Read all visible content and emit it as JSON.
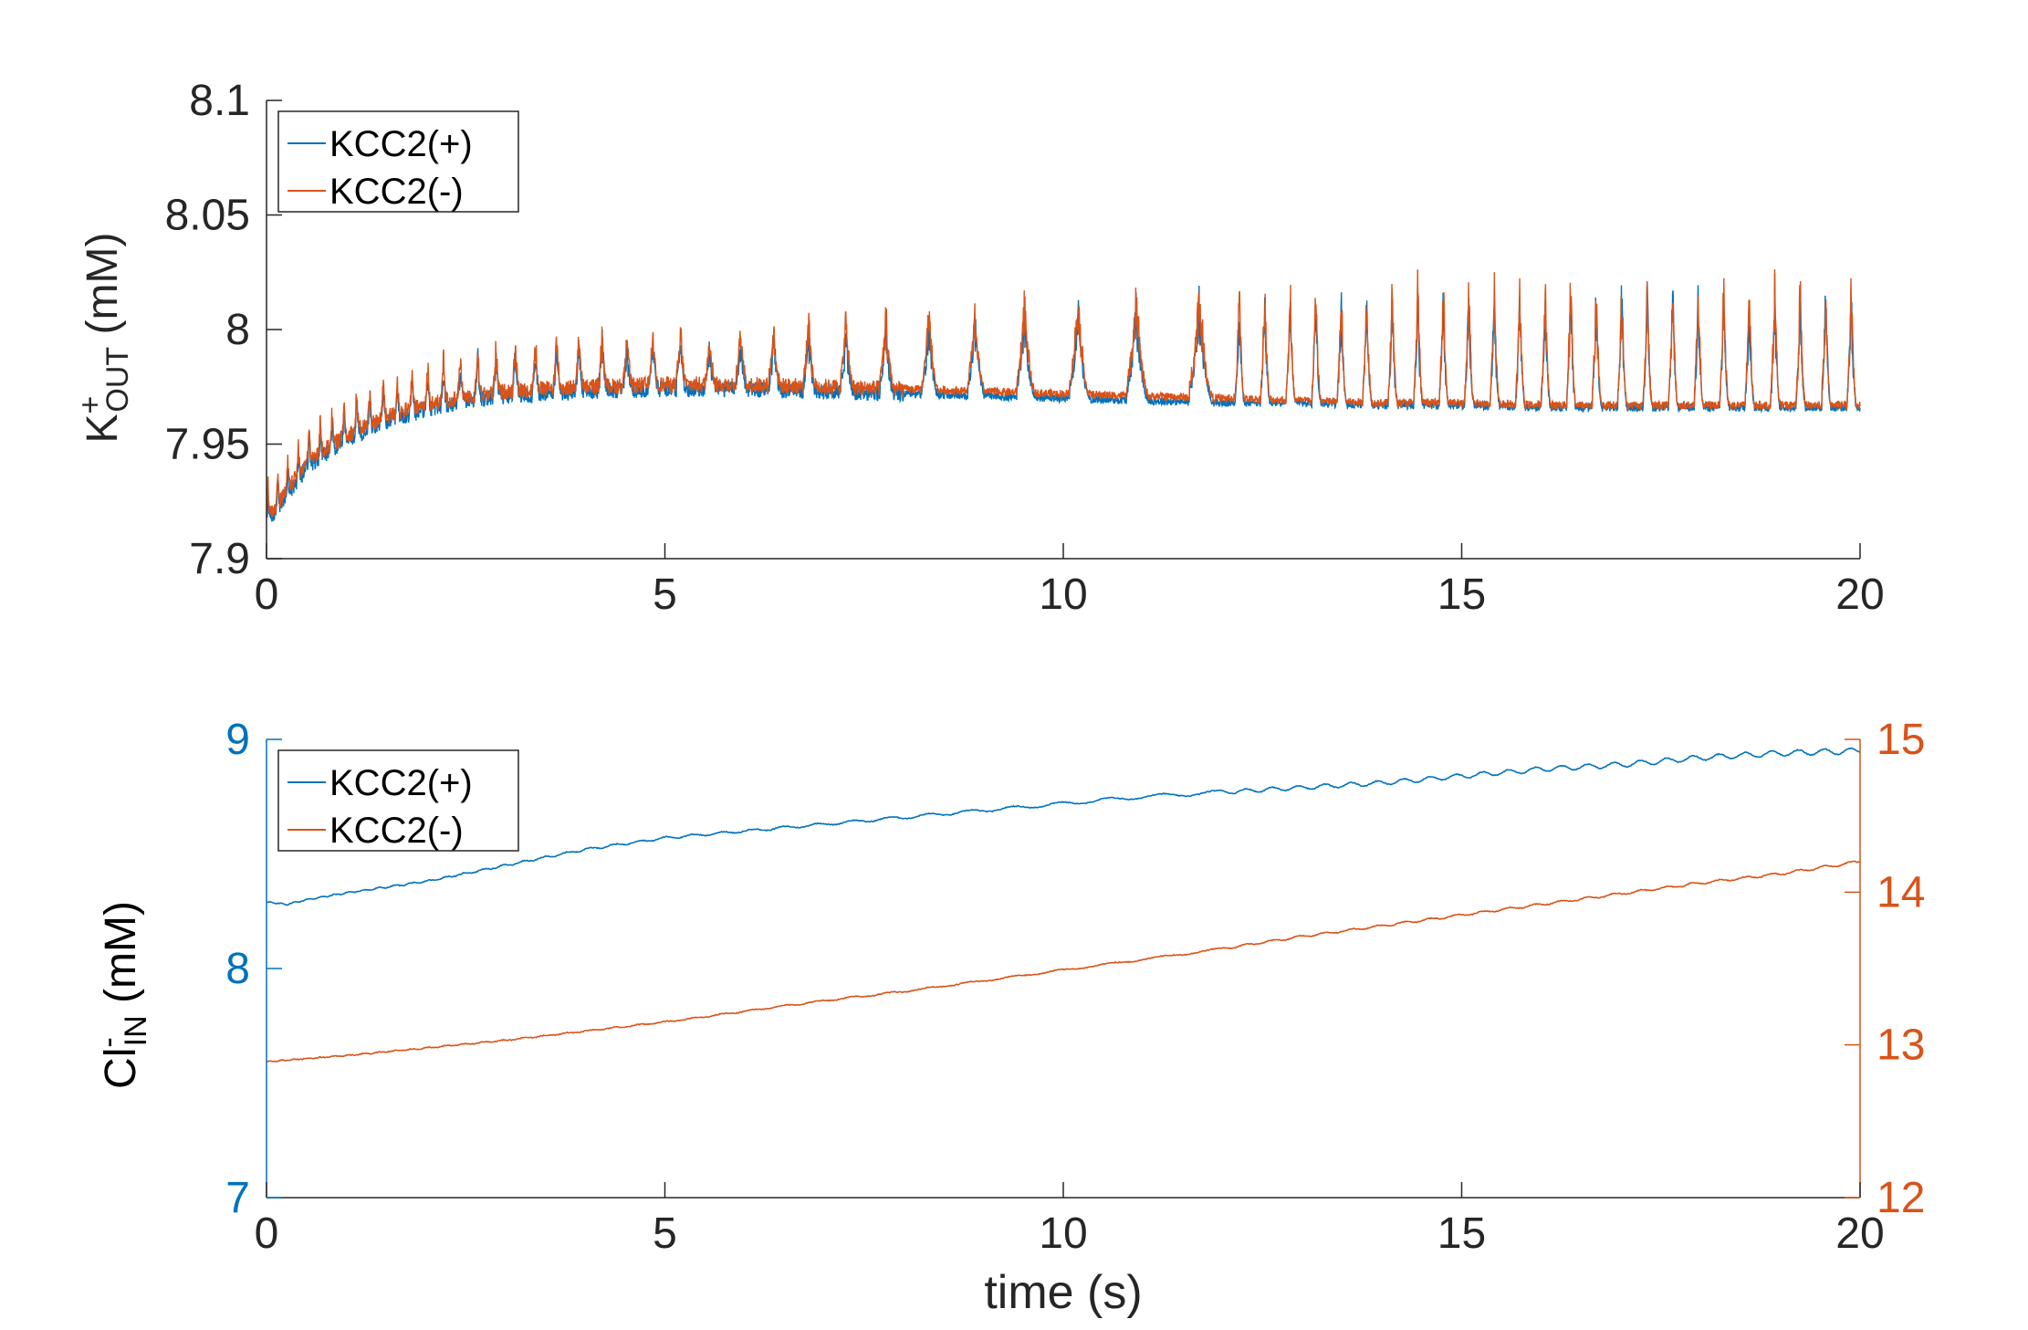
{
  "colors": {
    "blue": "#0072BD",
    "orange": "#D95319",
    "axis": "#262626",
    "legend_border": "#262626"
  },
  "chart_data": [
    {
      "type": "line",
      "ylabel": {
        "main": "K",
        "sup": "+",
        "sub": "OUT",
        "unit": " (mM)"
      },
      "xlabel": "",
      "xlim": [
        0,
        20
      ],
      "ylim": [
        7.9,
        8.1
      ],
      "xticks": [
        "0",
        "5",
        "10",
        "15",
        "20"
      ],
      "yticks": [
        "7.9",
        "7.95",
        "8",
        "8.05",
        "8.1"
      ],
      "grid": false,
      "legend_position": "top-left",
      "series": [
        {
          "name": "KCC2(+)",
          "color": "#0072BD",
          "x": [
            0,
            0.5,
            1,
            1.5,
            2,
            2.5,
            3,
            4,
            5,
            6,
            7,
            8,
            9,
            10,
            11,
            12,
            13,
            14,
            15,
            16,
            17,
            18,
            19,
            20
          ],
          "baseline": [
            7.915,
            7.94,
            7.952,
            7.96,
            7.965,
            7.969,
            7.971,
            7.973,
            7.974,
            7.974,
            7.973,
            7.972,
            7.971,
            7.97,
            7.969,
            7.968,
            7.968,
            7.967,
            7.967,
            7.966,
            7.966,
            7.966,
            7.966,
            7.966
          ],
          "peak": [
            7.93,
            7.955,
            7.97,
            7.98,
            7.985,
            7.99,
            7.995,
            8.0,
            8.0,
            8.0,
            8.002,
            8.005,
            8.01,
            8.015,
            8.018,
            8.02,
            8.02,
            8.022,
            8.024,
            8.025,
            8.025,
            8.025,
            8.025,
            8.025
          ]
        },
        {
          "name": "KCC2(-)",
          "color": "#D95319",
          "x": [
            0,
            0.5,
            1,
            1.5,
            2,
            2.5,
            3,
            4,
            5,
            6,
            7,
            8,
            9,
            10,
            11,
            12,
            13,
            14,
            15,
            16,
            17,
            18,
            19,
            20
          ],
          "baseline": [
            7.917,
            7.942,
            7.954,
            7.962,
            7.967,
            7.971,
            7.973,
            7.975,
            7.976,
            7.976,
            7.975,
            7.974,
            7.973,
            7.972,
            7.971,
            7.97,
            7.969,
            7.968,
            7.968,
            7.967,
            7.967,
            7.967,
            7.967,
            7.967
          ],
          "peak": [
            7.935,
            7.96,
            7.975,
            7.985,
            7.99,
            7.995,
            8.0,
            8.005,
            8.005,
            8.005,
            8.01,
            8.012,
            8.018,
            8.022,
            8.025,
            8.026,
            8.027,
            8.028,
            8.03,
            8.032,
            8.03,
            8.03,
            8.03,
            8.028
          ]
        }
      ]
    },
    {
      "type": "line",
      "ylabel": {
        "main": "Cl",
        "sup": "-",
        "sub": "IN",
        "unit": " (mM)"
      },
      "xlabel": "time (s)",
      "xlim": [
        0,
        20
      ],
      "ylim": [
        7,
        9
      ],
      "ylim_right": [
        12,
        15
      ],
      "xticks": [
        "0",
        "5",
        "10",
        "15",
        "20"
      ],
      "yticks": [
        "7",
        "8",
        "9"
      ],
      "yticks_right": [
        "12",
        "13",
        "14",
        "15"
      ],
      "grid": false,
      "legend_position": "top-left",
      "series": [
        {
          "name": "KCC2(+)",
          "color": "#0072BD",
          "axis": "left",
          "x": [
            0,
            0.25,
            0.5,
            1,
            2,
            3,
            4,
            5,
            6,
            7,
            8,
            9,
            10,
            11,
            12,
            13,
            14,
            15,
            16,
            17,
            18,
            19,
            20
          ],
          "y": [
            8.29,
            8.28,
            8.3,
            8.33,
            8.38,
            8.45,
            8.52,
            8.57,
            8.6,
            8.63,
            8.66,
            8.69,
            8.72,
            8.75,
            8.77,
            8.79,
            8.81,
            8.84,
            8.87,
            8.89,
            8.92,
            8.94,
            8.95
          ]
        },
        {
          "name": "KCC2(-)",
          "color": "#D95319",
          "axis": "right",
          "x": [
            0,
            1,
            2,
            3,
            4,
            5,
            6,
            7,
            8,
            9,
            10,
            11,
            12,
            13,
            14,
            15,
            16,
            17,
            18,
            19,
            20
          ],
          "y": [
            12.89,
            12.93,
            12.98,
            13.03,
            13.09,
            13.15,
            13.22,
            13.29,
            13.35,
            13.42,
            13.49,
            13.56,
            13.63,
            13.71,
            13.78,
            13.85,
            13.92,
            13.99,
            14.06,
            14.12,
            14.2
          ]
        }
      ]
    }
  ]
}
